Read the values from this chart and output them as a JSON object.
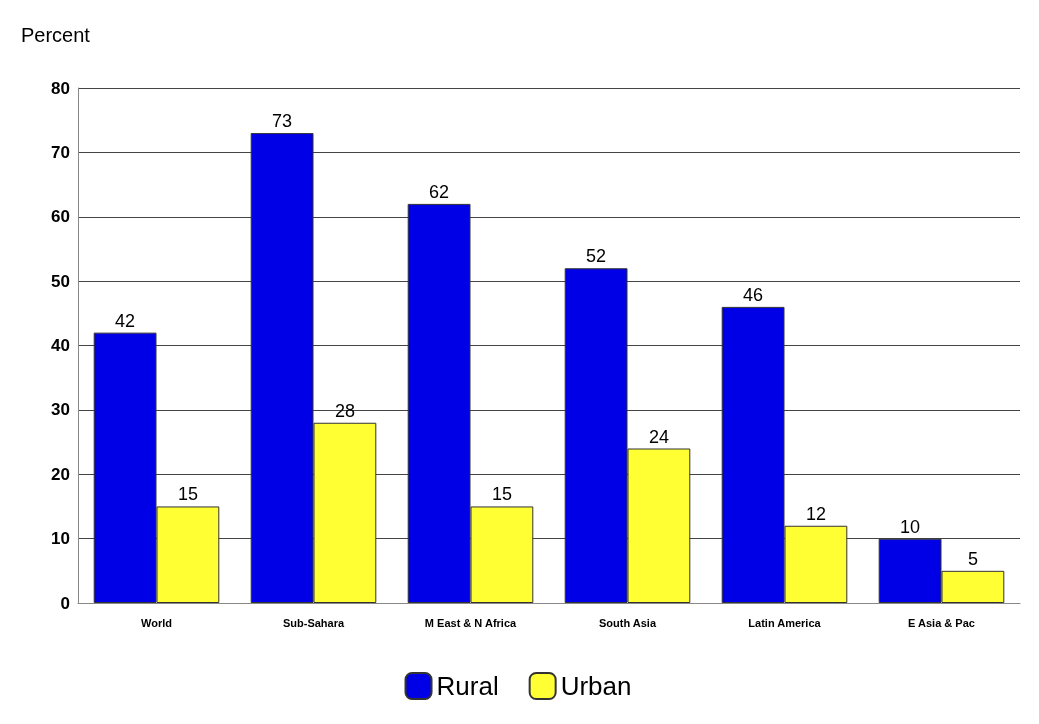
{
  "chart_data": {
    "type": "bar",
    "ylabel": "Percent",
    "categories": [
      "World",
      "Sub-Sahara",
      "M East & N Africa",
      "South Asia",
      "Latin America",
      "E Asia & Pac"
    ],
    "series": [
      {
        "name": "Rural",
        "color": "#0000e6",
        "values": [
          42,
          73,
          62,
          52,
          46,
          10
        ]
      },
      {
        "name": "Urban",
        "color": "#ffff33",
        "values": [
          15,
          28,
          15,
          24,
          12,
          5
        ]
      }
    ],
    "ylim": [
      0,
      80
    ],
    "yticks": [
      0,
      10,
      20,
      30,
      40,
      50,
      60,
      70,
      80
    ],
    "grid": "y",
    "legend": "bottom",
    "data_labels": true
  }
}
